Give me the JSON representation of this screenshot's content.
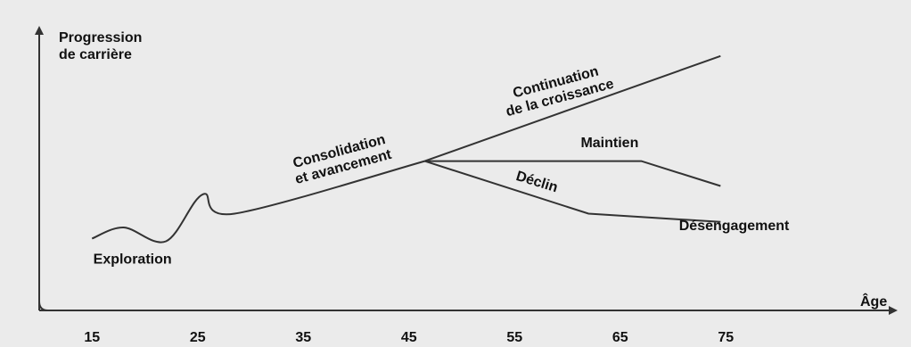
{
  "chart_data": {
    "type": "line",
    "title": "",
    "ylabel": [
      "Progression",
      "de carrière"
    ],
    "xlabel": "Âge",
    "x_ticks": [
      15,
      25,
      35,
      45,
      55,
      65,
      75
    ],
    "xlim": [
      10,
      82
    ],
    "ylim": [
      0,
      10
    ],
    "grid": false,
    "series": [
      {
        "name": "",
        "x": [
          15,
          18,
          22,
          25.5,
          28.5,
          46.5
        ],
        "y": [
          2.6,
          3.0,
          2.5,
          4.2,
          3.5,
          5.4
        ]
      },
      {
        "name": "",
        "x": [
          46.5,
          74.5
        ],
        "y": [
          5.4,
          9.2
        ]
      },
      {
        "name": "",
        "x": [
          46.5,
          67,
          74.5
        ],
        "y": [
          5.4,
          5.4,
          4.5
        ]
      },
      {
        "name": "",
        "x": [
          46.5,
          62,
          74.5
        ],
        "y": [
          5.4,
          3.5,
          3.2
        ]
      }
    ],
    "annotations": [
      {
        "id": "exploration",
        "text": "Exploration",
        "x": 19,
        "y": 1.7,
        "rotate": 0
      },
      {
        "id": "consolidation",
        "text": [
          "Consolidation",
          "et avancement"
        ],
        "x": 38.5,
        "y": 5.6,
        "rotate": -15
      },
      {
        "id": "continuation",
        "text": [
          "Continuation",
          "de la croissance"
        ],
        "x": 59,
        "y": 8.1,
        "rotate": -15
      },
      {
        "id": "maintien",
        "text": "Maintien",
        "x": 64,
        "y": 5.9,
        "rotate": 0
      },
      {
        "id": "declin",
        "text": "Déclin",
        "x": 57,
        "y": 4.5,
        "rotate": 17
      },
      {
        "id": "desengagement",
        "text": "Désengagement",
        "x": 81,
        "y": 2.9,
        "rotate": 0
      }
    ]
  }
}
